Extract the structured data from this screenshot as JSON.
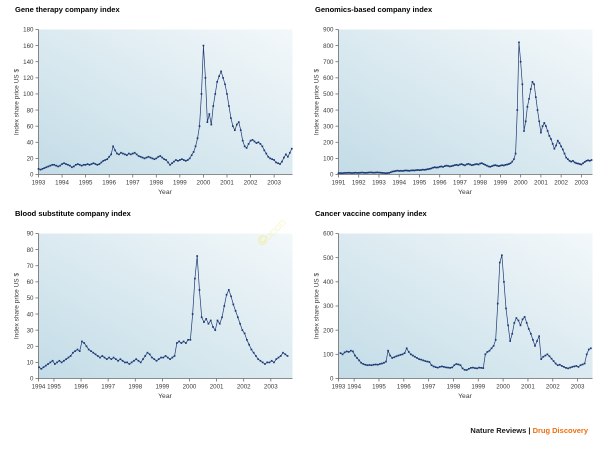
{
  "footer": {
    "brand": "Nature Reviews",
    "separator": "|",
    "journal": "Drug Discovery"
  },
  "watermark": {
    "symbol": "©",
    "glyphs": "□□□□"
  },
  "colors": {
    "line": "#1e3a74",
    "plot_gradient_start": "#c3dce7",
    "plot_gradient_end": "#f3f8fa",
    "axis": "#6b6b6b",
    "text": "#3a3a3a",
    "title": "#000000",
    "footer_brand": "#1a1a1a",
    "footer_journal": "#ed6f0e",
    "watermark": "#ebeb72"
  },
  "chart_data": [
    {
      "type": "line",
      "title": "Gene therapy company index",
      "xlabel": "Year",
      "ylabel": "Index share price US $",
      "ylim": [
        0,
        180
      ],
      "yticks": [
        0,
        20,
        40,
        60,
        80,
        100,
        120,
        140,
        160,
        180
      ],
      "xlim": [
        1993,
        2003.78
      ],
      "xticks": [
        1993,
        1994,
        1995,
        1996,
        1997,
        1998,
        1999,
        2000,
        2001,
        2002,
        2003
      ],
      "grid": false,
      "legend": "none",
      "x_start": 1993.0,
      "x_step": 0.0833333,
      "y": [
        7,
        6,
        7,
        8,
        9,
        10,
        11,
        12,
        12,
        11,
        10,
        11,
        13,
        14,
        13,
        12,
        11,
        9,
        10,
        12,
        13,
        12,
        11,
        12,
        12,
        13,
        12,
        13,
        14,
        13,
        12,
        13,
        15,
        17,
        18,
        19,
        22,
        25,
        35,
        30,
        26,
        25,
        27,
        26,
        25,
        24,
        26,
        25,
        26,
        27,
        25,
        23,
        22,
        21,
        20,
        21,
        22,
        21,
        20,
        19,
        20,
        22,
        23,
        21,
        19,
        18,
        15,
        12,
        14,
        16,
        18,
        17,
        18,
        19,
        18,
        17,
        18,
        20,
        24,
        28,
        35,
        45,
        60,
        100,
        160,
        120,
        65,
        75,
        62,
        85,
        100,
        115,
        122,
        128,
        120,
        112,
        100,
        85,
        70,
        60,
        55,
        62,
        65,
        55,
        42,
        35,
        33,
        38,
        42,
        43,
        41,
        39,
        40,
        38,
        35,
        30,
        26,
        22,
        20,
        19,
        18,
        15,
        14,
        13,
        16,
        21,
        25,
        22,
        27,
        32
      ]
    },
    {
      "type": "line",
      "title": "Genomics-based company index",
      "xlabel": "Year",
      "ylabel": "Index share price US $",
      "ylim": [
        0,
        900
      ],
      "yticks": [
        0,
        100,
        200,
        300,
        400,
        500,
        600,
        700,
        800,
        900
      ],
      "xlim": [
        1991,
        2003.55
      ],
      "xticks": [
        1991,
        1992,
        1993,
        1994,
        1995,
        1996,
        1997,
        1998,
        1999,
        2000,
        2001,
        2002,
        2003
      ],
      "grid": false,
      "legend": "none",
      "x_start": 1991.0,
      "x_step": 0.0833333,
      "y": [
        8,
        9,
        8,
        9,
        10,
        10,
        11,
        10,
        9,
        10,
        11,
        10,
        10,
        11,
        12,
        11,
        10,
        11,
        12,
        13,
        12,
        11,
        12,
        13,
        12,
        11,
        10,
        9,
        8,
        9,
        10,
        14,
        18,
        20,
        22,
        24,
        22,
        23,
        22,
        24,
        25,
        24,
        23,
        25,
        26,
        25,
        27,
        28,
        27,
        28,
        30,
        29,
        31,
        33,
        35,
        38,
        42,
        45,
        43,
        44,
        48,
        50,
        47,
        52,
        55,
        53,
        50,
        52,
        55,
        58,
        60,
        57,
        62,
        65,
        60,
        57,
        63,
        66,
        62,
        58,
        60,
        63,
        65,
        62,
        68,
        70,
        65,
        60,
        55,
        50,
        48,
        52,
        56,
        58,
        55,
        52,
        55,
        58,
        56,
        60,
        62,
        65,
        70,
        80,
        95,
        130,
        400,
        820,
        700,
        560,
        270,
        330,
        420,
        470,
        530,
        575,
        560,
        480,
        400,
        330,
        260,
        300,
        320,
        300,
        270,
        240,
        220,
        190,
        160,
        180,
        210,
        195,
        175,
        155,
        130,
        105,
        95,
        85,
        80,
        85,
        75,
        70,
        68,
        65,
        62,
        70,
        78,
        85,
        88,
        85,
        90
      ]
    },
    {
      "type": "line",
      "title": "Blood substitute company index",
      "xlabel": "Year",
      "ylabel": "Index share price US $",
      "ylim": [
        0,
        90
      ],
      "yticks": [
        0,
        10,
        20,
        30,
        40,
        50,
        60,
        70,
        80,
        90
      ],
      "xlim": [
        1994.43,
        2003.8
      ],
      "xticks": [
        1994,
        1995,
        1996,
        1997,
        1998,
        1999,
        2000,
        2001,
        2002,
        2003
      ],
      "grid": false,
      "legend": "none",
      "x_start": 1994.45,
      "x_step": 0.0833333,
      "y": [
        7,
        6,
        7,
        8,
        9,
        10,
        11,
        9,
        10,
        11,
        10,
        11,
        12,
        13,
        14,
        16,
        17,
        18,
        17,
        23,
        22,
        20,
        18,
        17,
        16,
        15,
        14,
        13,
        14,
        13,
        12,
        13,
        12,
        13,
        12,
        11,
        12,
        11,
        10,
        10,
        9,
        10,
        11,
        12,
        11,
        10,
        12,
        14,
        16,
        15,
        13,
        12,
        11,
        12,
        13,
        13,
        14,
        13,
        12,
        13,
        14,
        22,
        23,
        22,
        23,
        22,
        24,
        24,
        40,
        62,
        76,
        55,
        38,
        35,
        37,
        34,
        36,
        32,
        30,
        36,
        34,
        38,
        45,
        52,
        55,
        51,
        46,
        42,
        38,
        34,
        30,
        28,
        24,
        21,
        18,
        16,
        14,
        12,
        11,
        10,
        9,
        10,
        10,
        11,
        10,
        12,
        13,
        14,
        16,
        15,
        14
      ]
    },
    {
      "type": "line",
      "title": "Cancer vaccine company index",
      "xlabel": "Year",
      "ylabel": "Index share price US $",
      "ylim": [
        0,
        600
      ],
      "yticks": [
        0,
        100,
        200,
        300,
        400,
        500,
        600
      ],
      "xlim": [
        1993.37,
        2003.6
      ],
      "xticks": [
        1993,
        1994,
        1995,
        1996,
        1997,
        1998,
        1999,
        2000,
        2001,
        2002,
        2003
      ],
      "grid": false,
      "legend": "none",
      "x_start": 1993.45,
      "x_step": 0.0833333,
      "y": [
        105,
        100,
        108,
        112,
        110,
        115,
        112,
        95,
        85,
        75,
        65,
        60,
        57,
        55,
        56,
        55,
        57,
        58,
        57,
        60,
        62,
        65,
        70,
        115,
        95,
        85,
        88,
        92,
        95,
        98,
        100,
        105,
        125,
        110,
        100,
        95,
        90,
        85,
        80,
        78,
        75,
        72,
        70,
        68,
        55,
        50,
        47,
        45,
        48,
        50,
        48,
        46,
        45,
        44,
        46,
        55,
        60,
        58,
        55,
        42,
        36,
        35,
        40,
        44,
        45,
        43,
        42,
        45,
        44,
        43,
        100,
        110,
        115,
        125,
        135,
        160,
        310,
        480,
        510,
        400,
        290,
        220,
        155,
        185,
        230,
        250,
        240,
        220,
        245,
        255,
        230,
        205,
        185,
        160,
        135,
        155,
        175,
        80,
        90,
        95,
        100,
        92,
        82,
        72,
        62,
        55,
        57,
        52,
        48,
        44,
        42,
        45,
        48,
        50,
        52,
        48,
        55,
        58,
        62,
        100,
        120,
        125
      ]
    }
  ]
}
